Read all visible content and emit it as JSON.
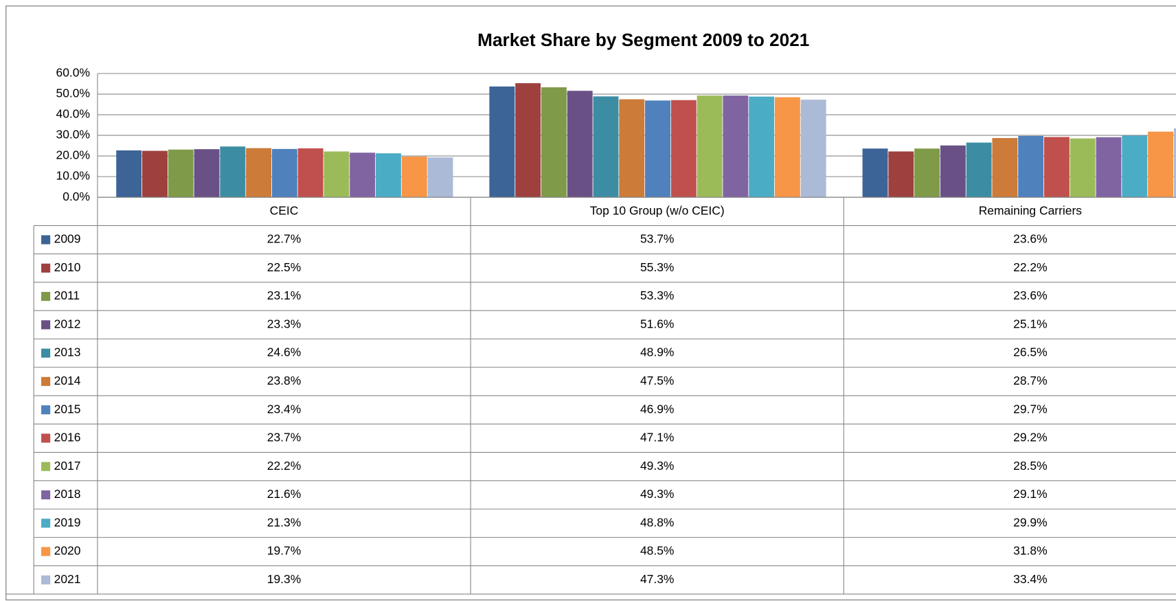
{
  "chart_data": {
    "type": "bar",
    "title": "Market Share by Segment  2009 to 2021",
    "categories": [
      "CEIC",
      "Top 10 Group (w/o CEIC)",
      "Remaining Carriers"
    ],
    "ylim": [
      0,
      60
    ],
    "yticks": [
      {
        "value": 0,
        "label": "0.0%"
      },
      {
        "value": 10,
        "label": "10.0%"
      },
      {
        "value": 20,
        "label": "20.0%"
      },
      {
        "value": 30,
        "label": "30.0%"
      },
      {
        "value": 40,
        "label": "40.0%"
      },
      {
        "value": 50,
        "label": "50.0%"
      },
      {
        "value": 60,
        "label": "60.0%"
      }
    ],
    "grid": true,
    "series": [
      {
        "name": "2009",
        "color": "#3c6497",
        "values": [
          22.7,
          53.7,
          23.6
        ],
        "value_labels": [
          "22.7%",
          "53.7%",
          "23.6%"
        ]
      },
      {
        "name": "2010",
        "color": "#9e413e",
        "values": [
          22.5,
          55.3,
          22.2
        ],
        "value_labels": [
          "22.5%",
          "55.3%",
          "22.2%"
        ]
      },
      {
        "name": "2011",
        "color": "#7f9a48",
        "values": [
          23.1,
          53.3,
          23.6
        ],
        "value_labels": [
          "23.1%",
          "53.3%",
          "23.6%"
        ]
      },
      {
        "name": "2012",
        "color": "#695185",
        "values": [
          23.3,
          51.6,
          25.1
        ],
        "value_labels": [
          "23.3%",
          "51.6%",
          "25.1%"
        ]
      },
      {
        "name": "2013",
        "color": "#3c8da3",
        "values": [
          24.6,
          48.9,
          26.5
        ],
        "value_labels": [
          "24.6%",
          "48.9%",
          "26.5%"
        ]
      },
      {
        "name": "2014",
        "color": "#cc7b38",
        "values": [
          23.8,
          47.5,
          28.7
        ],
        "value_labels": [
          "23.8%",
          "47.5%",
          "28.7%"
        ]
      },
      {
        "name": "2015",
        "color": "#4f81bd",
        "values": [
          23.4,
          46.9,
          29.7
        ],
        "value_labels": [
          "23.4%",
          "46.9%",
          "29.7%"
        ]
      },
      {
        "name": "2016",
        "color": "#c0504d",
        "values": [
          23.7,
          47.1,
          29.2
        ],
        "value_labels": [
          "23.7%",
          "47.1%",
          "29.2%"
        ]
      },
      {
        "name": "2017",
        "color": "#9bbb59",
        "values": [
          22.2,
          49.3,
          28.5
        ],
        "value_labels": [
          "22.2%",
          "49.3%",
          "28.5%"
        ]
      },
      {
        "name": "2018",
        "color": "#8064a2",
        "values": [
          21.6,
          49.3,
          29.1
        ],
        "value_labels": [
          "21.6%",
          "49.3%",
          "29.1%"
        ]
      },
      {
        "name": "2019",
        "color": "#4bacc6",
        "values": [
          21.3,
          48.8,
          29.9
        ],
        "value_labels": [
          "21.3%",
          "48.8%",
          "29.9%"
        ]
      },
      {
        "name": "2020",
        "color": "#f79646",
        "values": [
          19.7,
          48.5,
          31.8
        ],
        "value_labels": [
          "19.7%",
          "48.5%",
          "31.8%"
        ]
      },
      {
        "name": "2021",
        "color": "#aabad7",
        "values": [
          19.3,
          47.3,
          33.4
        ],
        "value_labels": [
          "19.3%",
          "47.3%",
          "33.4%"
        ]
      }
    ]
  }
}
